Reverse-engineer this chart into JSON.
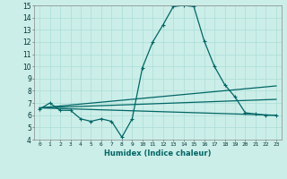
{
  "xlabel": "Humidex (Indice chaleur)",
  "background_color": "#cceee8",
  "grid_color": "#aaddd8",
  "line_color": "#006666",
  "xlim": [
    -0.5,
    23.5
  ],
  "ylim": [
    4,
    15
  ],
  "xtick_vals": [
    0,
    1,
    2,
    3,
    4,
    5,
    6,
    7,
    8,
    9,
    10,
    11,
    12,
    13,
    14,
    15,
    16,
    17,
    18,
    19,
    20,
    21,
    22,
    23
  ],
  "xtick_labels": [
    "0",
    "1",
    "2",
    "3",
    "4",
    "5",
    "6",
    "7",
    "8",
    "9",
    "10",
    "11",
    "12",
    "13",
    "14",
    "15",
    "16",
    "17",
    "18",
    "19",
    "20",
    "21",
    "22",
    "23"
  ],
  "ytick_vals": [
    4,
    5,
    6,
    7,
    8,
    9,
    10,
    11,
    12,
    13,
    14,
    15
  ],
  "ytick_labels": [
    "4",
    "5",
    "6",
    "7",
    "8",
    "9",
    "10",
    "11",
    "12",
    "13",
    "14",
    "15"
  ],
  "line1_x": [
    0,
    1,
    2,
    3,
    4,
    5,
    6,
    7,
    8,
    9,
    10,
    11,
    12,
    13,
    14,
    15,
    16,
    17,
    18,
    19,
    20,
    21,
    22,
    23
  ],
  "line1_y": [
    6.5,
    7.0,
    6.4,
    6.4,
    5.7,
    5.5,
    5.7,
    5.5,
    4.2,
    5.7,
    9.9,
    12.0,
    13.4,
    14.9,
    15.0,
    14.9,
    12.1,
    10.0,
    8.5,
    7.5,
    6.2,
    6.1,
    6.0,
    6.0
  ],
  "line2_x": [
    0,
    23
  ],
  "line2_y": [
    6.6,
    6.0
  ],
  "line3_x": [
    0,
    23
  ],
  "line3_y": [
    6.6,
    7.3
  ],
  "line4_x": [
    0,
    23
  ],
  "line4_y": [
    6.6,
    8.4
  ]
}
